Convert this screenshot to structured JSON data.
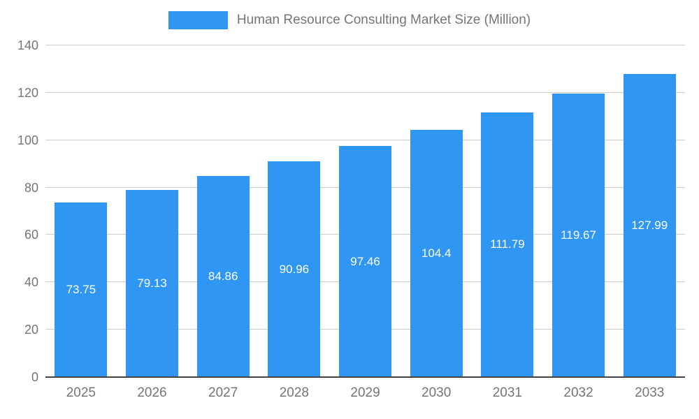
{
  "chart_data": {
    "type": "bar",
    "title": "Human Resource Consulting Market Size (Million)",
    "categories": [
      "2025",
      "2026",
      "2027",
      "2028",
      "2029",
      "2030",
      "2031",
      "2032",
      "2033"
    ],
    "values": [
      73.75,
      79.13,
      84.86,
      90.96,
      97.46,
      104.4,
      111.79,
      119.67,
      127.99
    ],
    "value_labels": [
      "73.75",
      "79.13",
      "84.86",
      "90.96",
      "97.46",
      "104.4",
      "111.79",
      "119.67",
      "127.99"
    ],
    "xlabel": "",
    "ylabel": "",
    "ylim": [
      0,
      140
    ],
    "yticks": [
      0,
      20,
      40,
      60,
      80,
      100,
      120,
      140
    ],
    "grid": true,
    "legend_position": "top-center",
    "bar_color": "#2f96f3",
    "label_color": "#ffffff",
    "title_color": "#757575",
    "axis_text_color": "#757575",
    "grid_color": "#cccccc",
    "baseline_color": "#424242",
    "background_color": "#ffffff"
  }
}
